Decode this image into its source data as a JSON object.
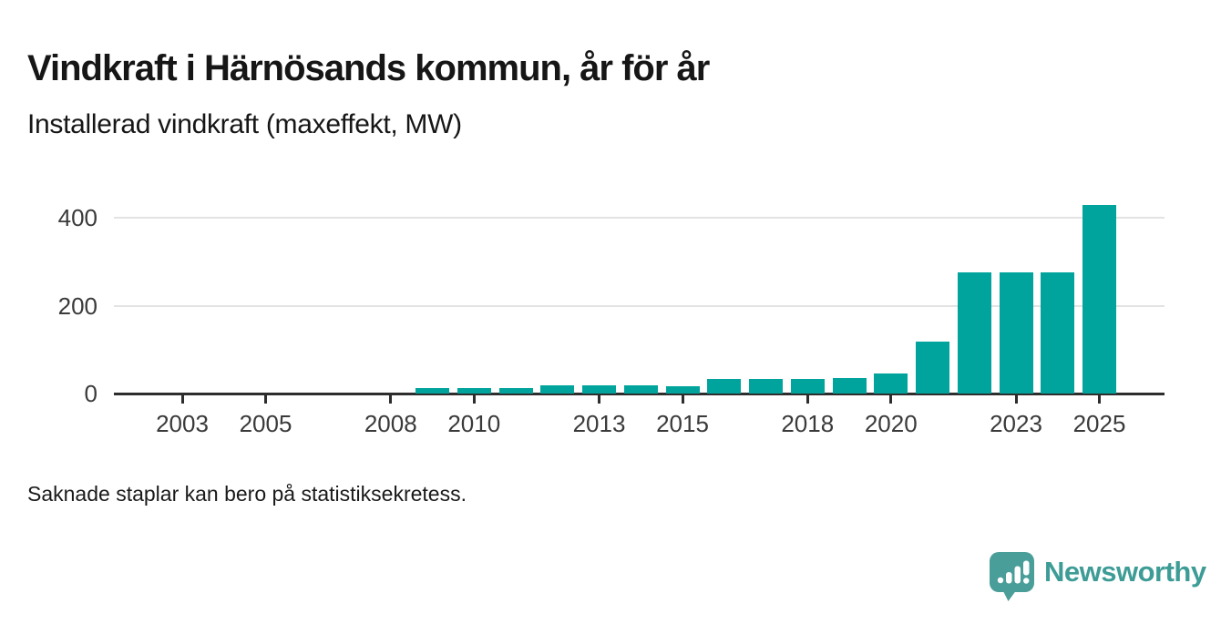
{
  "header": {
    "title": "Vindkraft i Härnösands kommun, år för år",
    "subtitle": "Installerad vindkraft (maxeffekt, MW)"
  },
  "footnote": "Saknade staplar kan bero på statistiksekretess.",
  "branding": {
    "wordmark": "Newsworthy",
    "icon": "newsworthy-speech-bubble-bar-chart-icon",
    "icon_color": "#4a9e99",
    "wordmark_color": "#3e9c96"
  },
  "chart_data": {
    "type": "bar",
    "title": "Vindkraft i Härnösands kommun, år för år",
    "subtitle": "Installerad vindkraft (maxeffekt, MW)",
    "xlabel": "",
    "ylabel": "Installerad vindkraft (maxeffekt, MW)",
    "unit": "MW",
    "x": [
      2009,
      2010,
      2011,
      2012,
      2013,
      2014,
      2015,
      2016,
      2017,
      2018,
      2019,
      2020,
      2021,
      2022,
      2023,
      2024,
      2025
    ],
    "values": [
      13,
      13,
      13,
      19,
      19,
      19,
      17,
      33,
      33,
      33,
      35,
      45,
      119,
      276,
      276,
      276,
      430
    ],
    "missing_years_note": "Inga staplar 2002–2008 (saknade staplar kan bero på statistiksekretess)",
    "xticks": [
      2003,
      2005,
      2008,
      2010,
      2013,
      2015,
      2018,
      2020,
      2023,
      2025
    ],
    "yticks": [
      0,
      200,
      400
    ],
    "xlim": [
      2001.4,
      2026.6
    ],
    "ylim": [
      0,
      460
    ],
    "grid": "horizontal",
    "legend": "none",
    "bar_color": "#00a49c",
    "axis_color": "#2d2d2d",
    "gridline_color": "#e3e3e3"
  }
}
